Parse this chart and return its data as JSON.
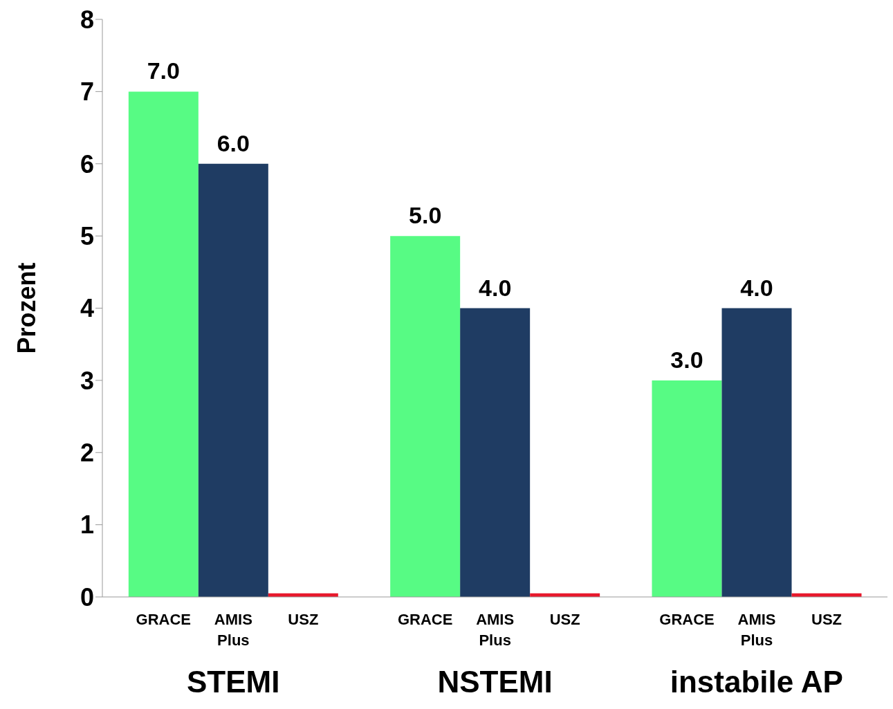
{
  "chart_data": {
    "type": "bar",
    "ylabel": "Prozent",
    "categories": [
      "STEMI",
      "NSTEMI",
      "instabile AP"
    ],
    "series": [
      {
        "name": "GRACE",
        "color": "#57fb84",
        "values": [
          7.0,
          5.0,
          3.0
        ],
        "value_labels": [
          "7.0",
          "5.0",
          "3.0"
        ]
      },
      {
        "name": "AMIS Plus",
        "color": "#1f3c63",
        "values": [
          6.0,
          4.0,
          4.0
        ],
        "value_labels": [
          "6.0",
          "4.0",
          "4.0"
        ]
      },
      {
        "name": "USZ",
        "color": "#e8192c",
        "values": [
          0.05,
          0.05,
          0.05
        ]
      }
    ],
    "ylim": [
      0,
      8
    ],
    "yticks": [
      0,
      1,
      2,
      3,
      4,
      5,
      6,
      7,
      8
    ],
    "grid": false,
    "legend": false
  }
}
